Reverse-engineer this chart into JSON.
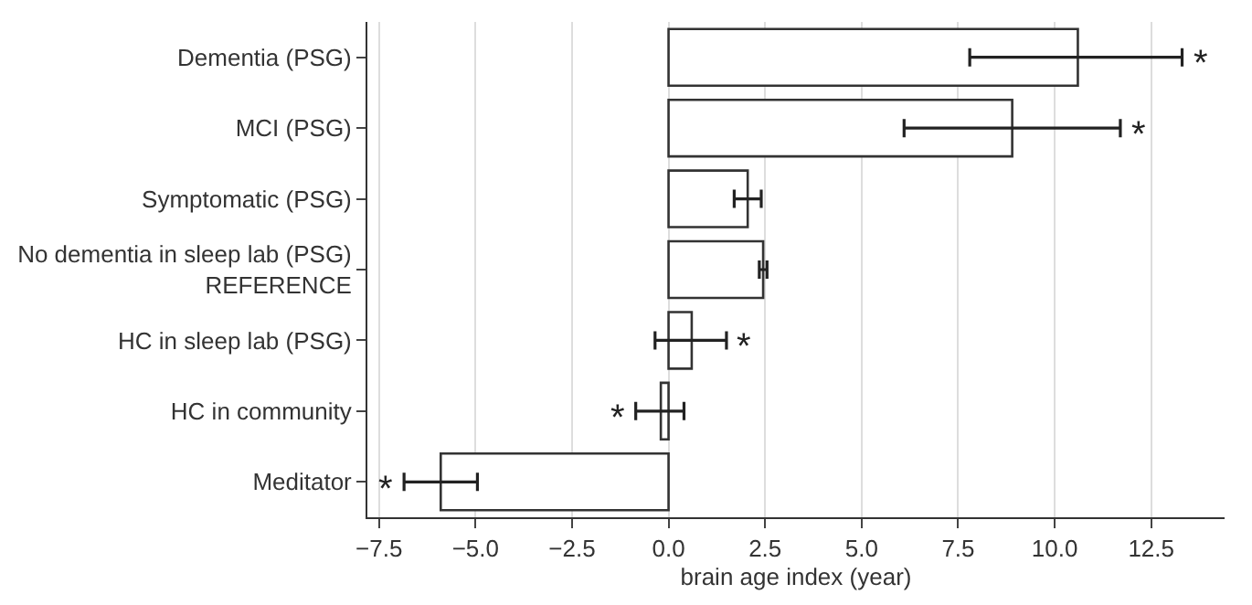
{
  "chart_data": {
    "type": "bar",
    "orientation": "horizontal",
    "xlabel": "brain age index (year)",
    "categories": [
      "Dementia (PSG)",
      "MCI (PSG)",
      "Symptomatic (PSG)",
      "No dementia in sleep lab (PSG)\nREFERENCE",
      "HC in sleep lab (PSG)",
      "HC in community",
      "Meditator"
    ],
    "values": [
      10.6,
      8.9,
      2.05,
      2.45,
      0.6,
      -0.2,
      -5.9
    ],
    "errors": [
      [
        7.8,
        13.3
      ],
      [
        6.1,
        11.7
      ],
      [
        1.7,
        2.4
      ],
      [
        2.35,
        2.55
      ],
      [
        -0.35,
        1.5
      ],
      [
        -0.85,
        0.4
      ],
      [
        -6.85,
        -4.95
      ]
    ],
    "color": "#ffffff",
    "xlim": [
      -7.8,
      14.4
    ],
    "xticks": [
      {
        "value": -7.5,
        "label": "−7.5"
      },
      {
        "value": -5,
        "label": "−5.0"
      },
      {
        "value": -2.5,
        "label": "−2.5"
      },
      {
        "value": 0,
        "label": "0.0"
      },
      {
        "value": 2.5,
        "label": "2.5"
      },
      {
        "value": 5,
        "label": "5.0"
      },
      {
        "value": 7.5,
        "label": "7.5"
      },
      {
        "value": 10,
        "label": "10.0"
      },
      {
        "value": 12.5,
        "label": "12.5"
      }
    ],
    "grid": "x",
    "annotations": [
      {
        "text": "*",
        "x": 13.3,
        "y": "Dementia (PSG)"
      },
      {
        "text": "*",
        "x": 11.7,
        "y": "MCI (PSG)"
      },
      {
        "text": "*",
        "x": 1.5,
        "y": "HC in sleep lab (PSG)"
      },
      {
        "text": "*",
        "x": -0.85,
        "y": "HC in community"
      },
      {
        "text": "*",
        "x": -6.85,
        "y": "Meditator"
      }
    ]
  }
}
